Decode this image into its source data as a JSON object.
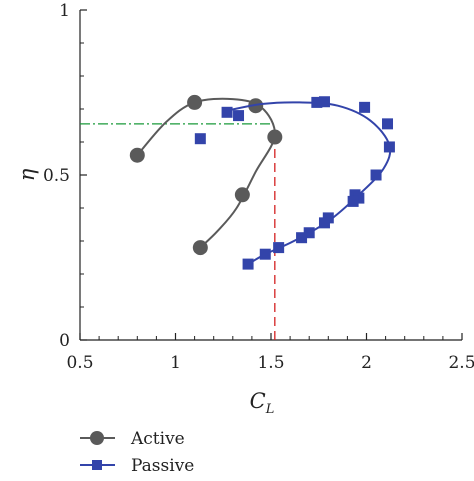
{
  "chart_data": {
    "type": "scatter",
    "title": "",
    "xlabel": "C",
    "xlabel_sub": "L",
    "ylabel": "η",
    "xlim": [
      0.5,
      2.5
    ],
    "ylim": [
      0,
      1
    ],
    "x_ticks": [
      0.5,
      1,
      1.5,
      2,
      2.5
    ],
    "x_tick_labels": [
      "0.5",
      "1",
      "1.5",
      "2",
      "2.5"
    ],
    "y_ticks": [
      0,
      0.5,
      1
    ],
    "y_tick_labels": [
      "0",
      "0.5",
      "1"
    ],
    "grid": false,
    "legend_position": "bottom-left",
    "series": [
      {
        "name": "Active",
        "marker": "circle",
        "color": "#5a5a5a",
        "points": [
          {
            "x": 0.8,
            "y": 0.56
          },
          {
            "x": 1.1,
            "y": 0.72
          },
          {
            "x": 1.42,
            "y": 0.71
          },
          {
            "x": 1.52,
            "y": 0.615
          },
          {
            "x": 1.35,
            "y": 0.44
          },
          {
            "x": 1.13,
            "y": 0.28
          }
        ],
        "curve": [
          {
            "x": 0.8,
            "y": 0.56
          },
          {
            "x": 0.95,
            "y": 0.66
          },
          {
            "x": 1.1,
            "y": 0.72
          },
          {
            "x": 1.3,
            "y": 0.73
          },
          {
            "x": 1.45,
            "y": 0.705
          },
          {
            "x": 1.52,
            "y": 0.62
          },
          {
            "x": 1.42,
            "y": 0.51
          },
          {
            "x": 1.32,
            "y": 0.4
          },
          {
            "x": 1.22,
            "y": 0.33
          },
          {
            "x": 1.13,
            "y": 0.28
          }
        ]
      },
      {
        "name": "Passive",
        "marker": "square",
        "color": "#3344aa",
        "points": [
          {
            "x": 1.13,
            "y": 0.61
          },
          {
            "x": 1.27,
            "y": 0.69
          },
          {
            "x": 1.33,
            "y": 0.68
          },
          {
            "x": 1.74,
            "y": 0.72
          },
          {
            "x": 1.78,
            "y": 0.722
          },
          {
            "x": 1.99,
            "y": 0.705
          },
          {
            "x": 2.11,
            "y": 0.655
          },
          {
            "x": 2.12,
            "y": 0.585
          },
          {
            "x": 2.05,
            "y": 0.5
          },
          {
            "x": 1.94,
            "y": 0.44
          },
          {
            "x": 1.96,
            "y": 0.43
          },
          {
            "x": 1.93,
            "y": 0.42
          },
          {
            "x": 1.8,
            "y": 0.37
          },
          {
            "x": 1.78,
            "y": 0.355
          },
          {
            "x": 1.7,
            "y": 0.325
          },
          {
            "x": 1.66,
            "y": 0.31
          },
          {
            "x": 1.54,
            "y": 0.28
          },
          {
            "x": 1.47,
            "y": 0.26
          },
          {
            "x": 1.38,
            "y": 0.23
          }
        ],
        "curve": [
          {
            "x": 1.27,
            "y": 0.695
          },
          {
            "x": 1.45,
            "y": 0.715
          },
          {
            "x": 1.65,
            "y": 0.72
          },
          {
            "x": 1.85,
            "y": 0.71
          },
          {
            "x": 2.02,
            "y": 0.665
          },
          {
            "x": 2.12,
            "y": 0.59
          },
          {
            "x": 2.09,
            "y": 0.52
          },
          {
            "x": 1.96,
            "y": 0.44
          },
          {
            "x": 1.8,
            "y": 0.36
          },
          {
            "x": 1.62,
            "y": 0.3
          },
          {
            "x": 1.47,
            "y": 0.26
          },
          {
            "x": 1.38,
            "y": 0.23
          }
        ]
      }
    ],
    "reference_lines": [
      {
        "orientation": "horizontal",
        "y": 0.655,
        "x_from": 0.5,
        "x_to": 1.5,
        "color": "#1a9a3a",
        "style": "dash-dot"
      },
      {
        "orientation": "vertical",
        "x": 1.52,
        "y_from": 0,
        "y_to": 0.6,
        "color": "#d42020",
        "style": "dashed"
      }
    ]
  }
}
